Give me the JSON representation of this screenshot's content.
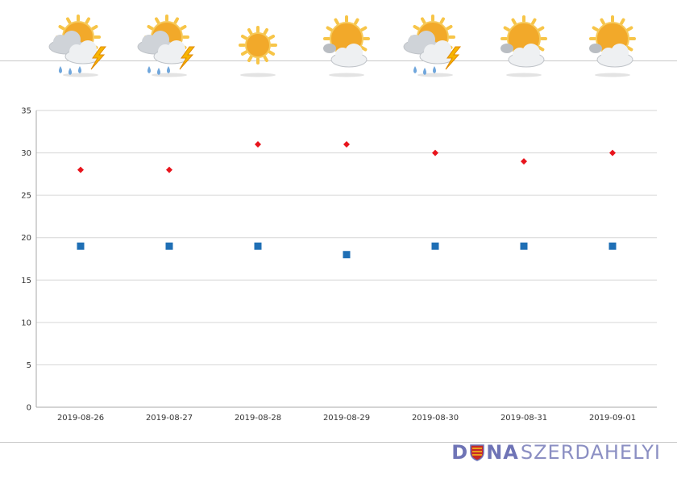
{
  "weather_icons": [
    "sun-cloud-rain-thunder-icon",
    "sun-cloud-rain-thunder-icon",
    "sun-icon",
    "sun-cloud-icon",
    "sun-cloud-rain-thunder-icon",
    "sun-cloud-icon",
    "sun-cloud-icon"
  ],
  "logo": {
    "part1": "D",
    "part2": "NA",
    "part3": "SZERDAHELYI"
  },
  "colors": {
    "max_series": "#e8141c",
    "min_series": "#1f6fb5",
    "logo": "#6f74b6"
  },
  "chart_data": {
    "type": "scatter",
    "categories": [
      "2019-08-26",
      "2019-08-27",
      "2019-08-28",
      "2019-08-29",
      "2019-08-30",
      "2019-08-31",
      "2019-09-01"
    ],
    "series": [
      {
        "values": [
          28,
          28,
          31,
          31,
          30,
          29,
          30
        ],
        "marker": "diamond",
        "color": "#e8141c"
      },
      {
        "values": [
          19,
          19,
          19,
          18,
          19,
          19,
          19
        ],
        "marker": "square",
        "color": "#1f6fb5"
      }
    ],
    "ylim": [
      0,
      35
    ],
    "yticks": [
      "0",
      "5",
      "10",
      "15",
      "20",
      "25",
      "30",
      "35"
    ],
    "grid": true,
    "title": "",
    "xlabel": "",
    "ylabel": ""
  }
}
